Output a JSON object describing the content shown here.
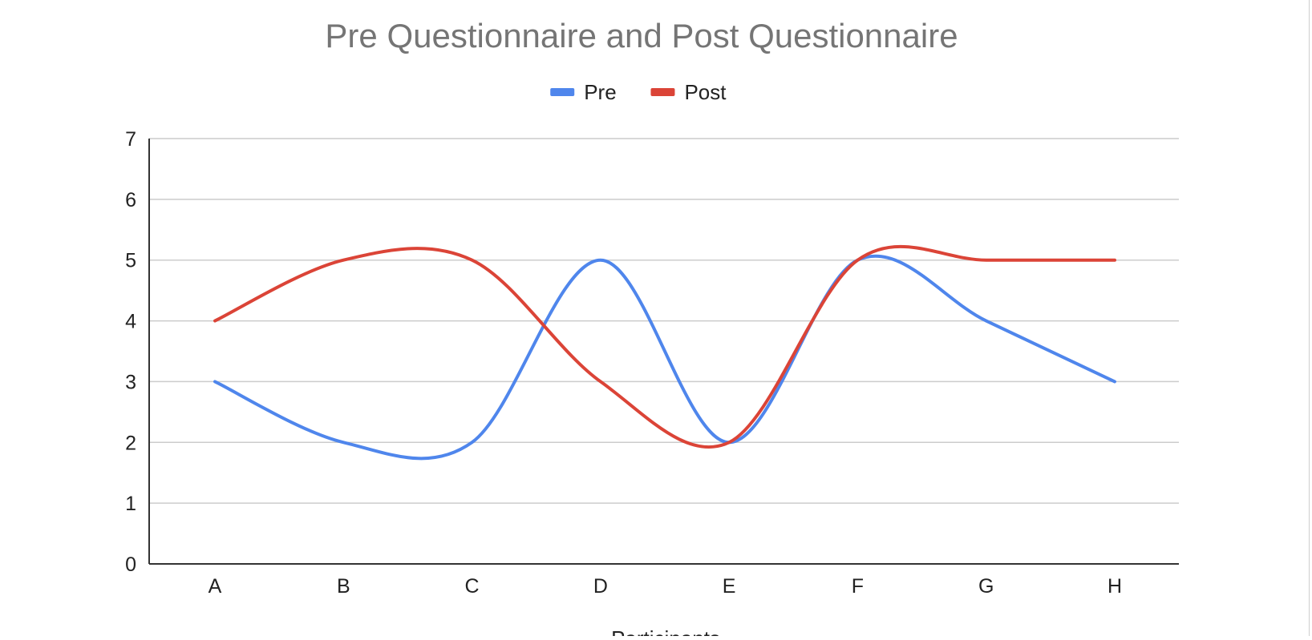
{
  "chart_data": {
    "type": "line",
    "title": "Pre Questionnaire and Post Questionnaire",
    "xlabel": "Participants",
    "ylabel": "",
    "categories": [
      "A",
      "B",
      "C",
      "D",
      "E",
      "F",
      "G",
      "H"
    ],
    "ylim": [
      0,
      7
    ],
    "yticks": [
      "0",
      "1",
      "2",
      "3",
      "4",
      "5",
      "6",
      "7"
    ],
    "grid": true,
    "legend_position": "top-center",
    "smooth": true,
    "series": [
      {
        "name": "Pre",
        "color": "#4f86ec",
        "values": [
          3,
          2,
          2,
          5,
          2,
          5,
          4,
          3
        ]
      },
      {
        "name": "Post",
        "color": "#db4437",
        "values": [
          4,
          5,
          5,
          3,
          2,
          5,
          5,
          5
        ]
      }
    ]
  },
  "colors": {
    "title": "#757575",
    "axis_text": "#222222",
    "gridline": "#cccccc",
    "axis_line": "#333333"
  }
}
